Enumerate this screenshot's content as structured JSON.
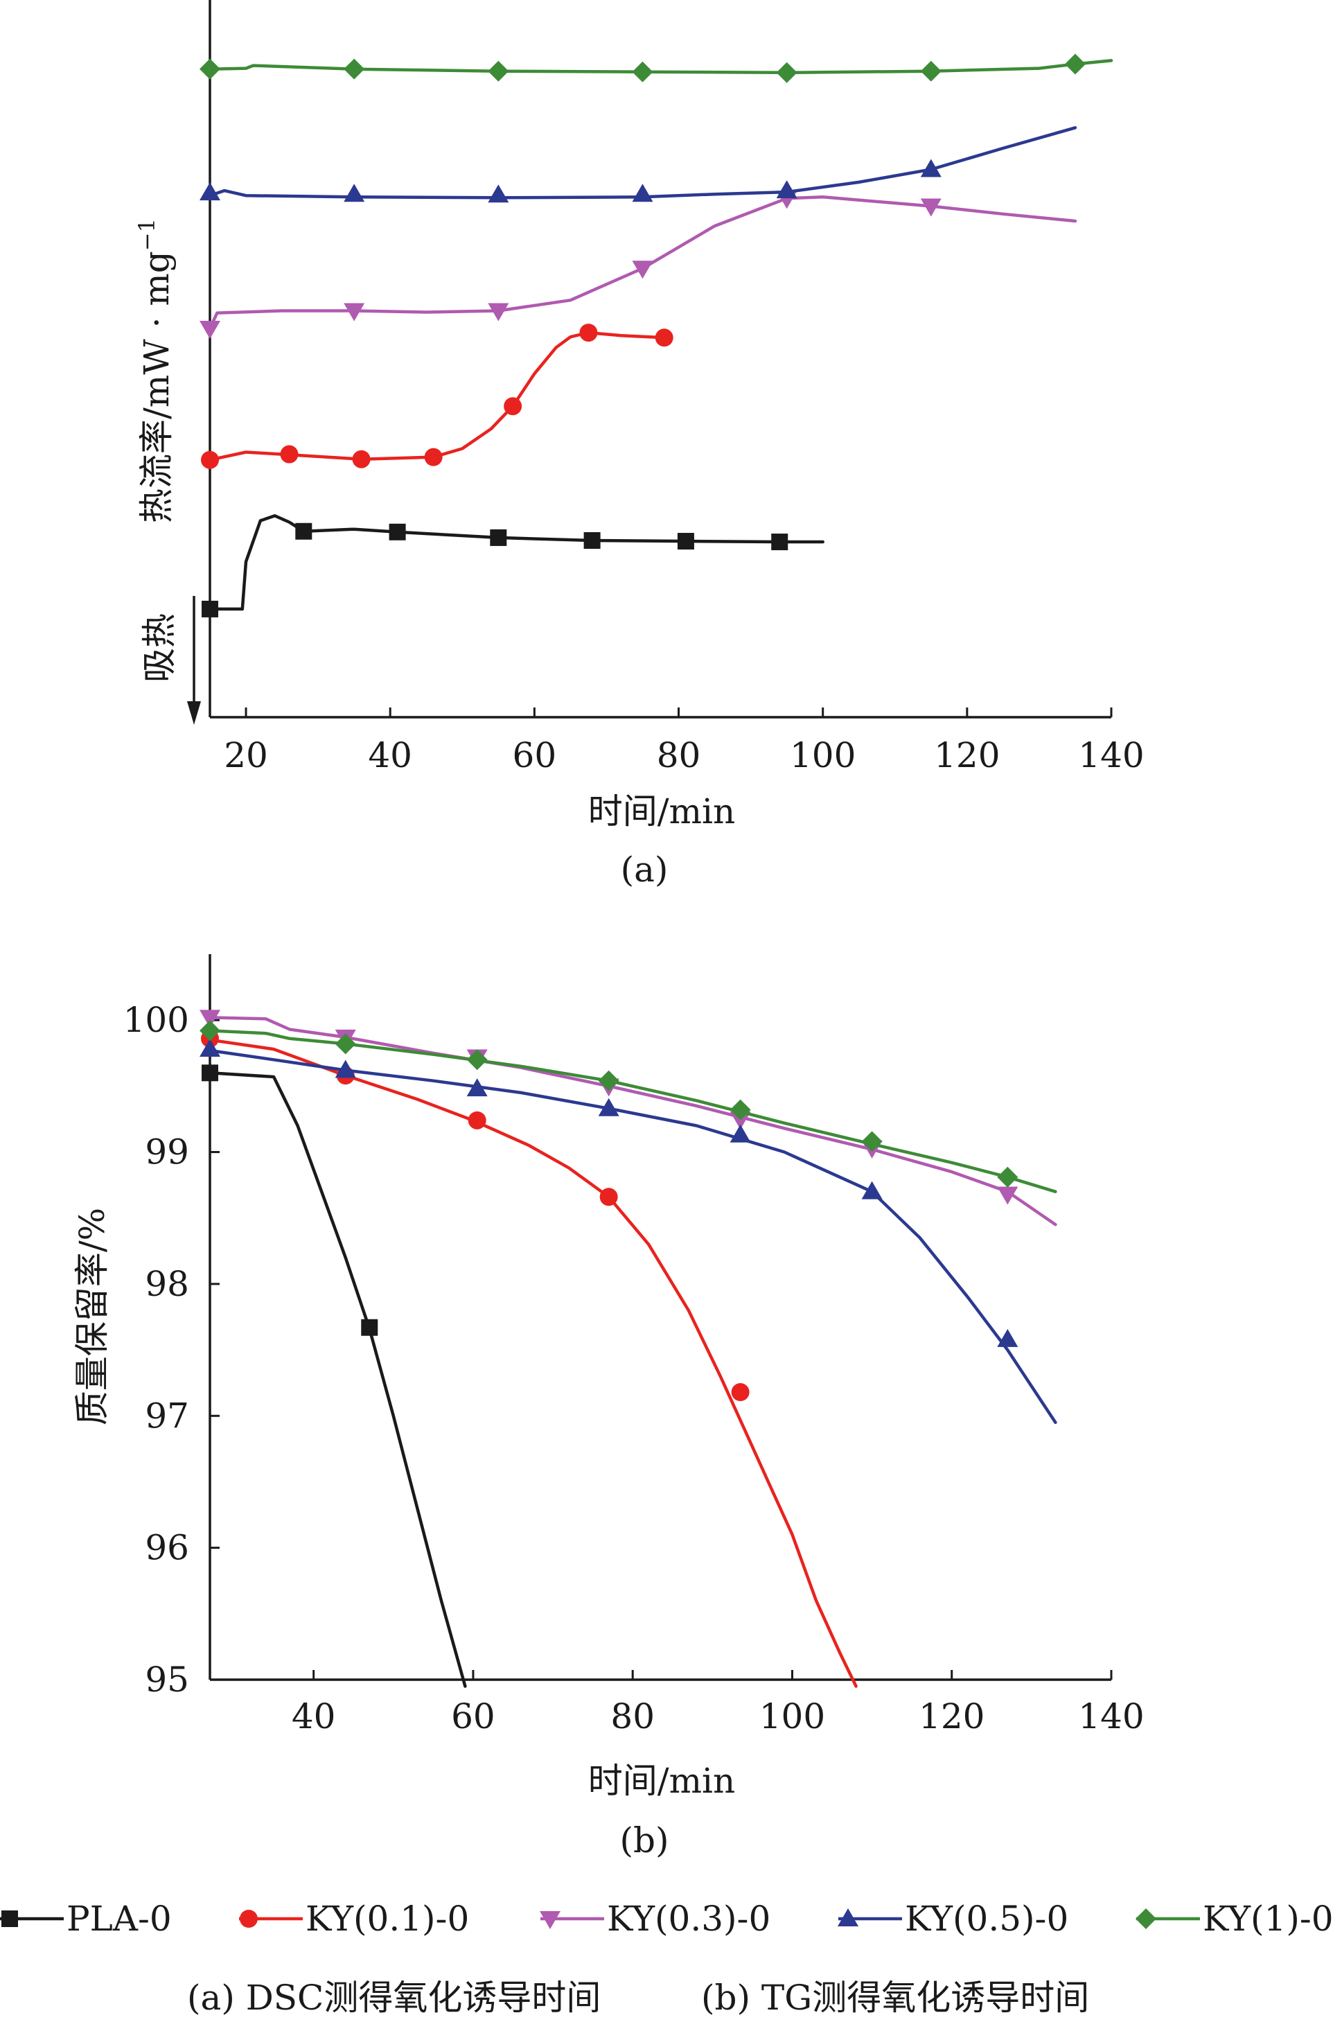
{
  "chart_data": [
    {
      "panel": "a",
      "type": "line",
      "ylabel": "热流率/mW · mg⁻¹",
      "ylabel_main": "热流率/mW",
      "ylabel_dot": "·",
      "ylabel_unit": "mg",
      "ylabel_sup": "−1",
      "xlabel": "时间/min",
      "arrow_label": "吸热",
      "panel_label": "(a)",
      "xlim": [
        15,
        140
      ],
      "ylim": [
        0,
        100
      ],
      "y_ticks_shown": false,
      "xticks": [
        "20",
        "40",
        "60",
        "80",
        "100",
        "120",
        "140"
      ],
      "series": [
        {
          "name": "PLA-0",
          "color": "#1a1a1a",
          "marker": "square",
          "x": [
            15,
            19.5,
            20,
            22,
            24,
            26,
            28,
            35,
            41,
            55,
            68,
            81,
            94,
            100
          ],
          "y": [
            15.3,
            15.3,
            22,
            27.8,
            28.5,
            27.6,
            26.3,
            26.6,
            26.2,
            25.4,
            25.0,
            24.9,
            24.8,
            24.8
          ],
          "marker_x": [
            15,
            28,
            41,
            55,
            68,
            81,
            94
          ],
          "marker_y": [
            15.3,
            26.3,
            26.2,
            25.4,
            25.0,
            24.9,
            24.8
          ]
        },
        {
          "name": "KY(0.1)-0",
          "color": "#e8231f",
          "marker": "circle",
          "x": [
            15,
            20,
            25,
            36,
            46,
            50,
            54,
            57,
            60,
            63,
            65,
            67.5,
            72,
            78
          ],
          "y": [
            36.4,
            37.5,
            37.2,
            36.5,
            36.8,
            38,
            40.8,
            44,
            48.6,
            52.3,
            53.8,
            54.4,
            54.0,
            53.7
          ],
          "marker_x": [
            15,
            26,
            36,
            46,
            57,
            67.5,
            78
          ],
          "marker_y": [
            36.4,
            37.2,
            36.5,
            36.8,
            44,
            54.4,
            53.7
          ]
        },
        {
          "name": "KY(0.3)-0",
          "color": "#b05ab0",
          "marker": "triangle-down",
          "x": [
            15,
            16,
            25,
            35,
            45,
            55,
            65,
            75,
            85,
            95,
            100,
            115,
            125,
            135
          ],
          "y": [
            55,
            57.2,
            57.5,
            57.5,
            57.3,
            57.5,
            59,
            63.5,
            69.5,
            73.4,
            73.6,
            72.3,
            71.2,
            70.2
          ],
          "marker_x": [
            15,
            35,
            55,
            75,
            95,
            115
          ],
          "marker_y": [
            55,
            57.5,
            57.5,
            63.5,
            73.4,
            72.3
          ]
        },
        {
          "name": "KY(0.5)-0",
          "color": "#2b3990",
          "marker": "triangle-up",
          "x": [
            15,
            17,
            20,
            35,
            55,
            75,
            85,
            95,
            105,
            115,
            125,
            135
          ],
          "y": [
            73.8,
            74.5,
            73.8,
            73.6,
            73.5,
            73.6,
            74.0,
            74.3,
            75.7,
            77.5,
            80.5,
            83.4
          ],
          "marker_x": [
            15,
            35,
            55,
            75,
            95,
            115
          ],
          "marker_y": [
            74.2,
            74.0,
            73.9,
            74.0,
            74.5,
            77.5
          ]
        },
        {
          "name": "KY(1)-0",
          "color": "#3d8b37",
          "marker": "diamond",
          "x": [
            15,
            20,
            21,
            35,
            55,
            75,
            95,
            115,
            130,
            135,
            140
          ],
          "y": [
            91.7,
            91.8,
            92.2,
            91.7,
            91.4,
            91.3,
            91.2,
            91.4,
            91.8,
            92.4,
            92.9
          ],
          "marker_x": [
            15,
            35,
            55,
            75,
            95,
            115,
            135
          ],
          "marker_y": [
            91.7,
            91.7,
            91.4,
            91.3,
            91.2,
            91.4,
            92.4
          ]
        }
      ]
    },
    {
      "panel": "b",
      "type": "line",
      "ylabel": "质量保留率/%",
      "xlabel": "时间/min",
      "panel_label": "(b)",
      "xlim": [
        27,
        140
      ],
      "ylim": [
        95,
        100.5
      ],
      "xticks": [
        "40",
        "60",
        "80",
        "100",
        "120",
        "140"
      ],
      "yticks": [
        "95",
        "96",
        "97",
        "98",
        "99",
        "100"
      ],
      "series": [
        {
          "name": "PLA-0",
          "color": "#1a1a1a",
          "marker": "square",
          "x": [
            27,
            35,
            38,
            41,
            44,
            47,
            50,
            53,
            56,
            59
          ],
          "y": [
            99.6,
            99.57,
            99.2,
            98.7,
            98.2,
            97.66,
            97.0,
            96.3,
            95.6,
            94.95
          ],
          "marker_x": [
            27,
            47
          ],
          "marker_y": [
            99.6,
            97.67
          ]
        },
        {
          "name": "KY(0.1)-0",
          "color": "#e8231f",
          "marker": "circle",
          "x": [
            27,
            35,
            44,
            53,
            60,
            67,
            72,
            77,
            82,
            87,
            91,
            94,
            97,
            100,
            103,
            106,
            108
          ],
          "y": [
            99.85,
            99.78,
            99.58,
            99.4,
            99.24,
            99.05,
            98.88,
            98.66,
            98.3,
            97.8,
            97.3,
            96.9,
            96.5,
            96.1,
            95.6,
            95.2,
            94.95
          ],
          "marker_x": [
            27,
            44,
            60.5,
            77,
            93.5
          ],
          "marker_y": [
            99.86,
            99.58,
            99.24,
            98.66,
            97.18
          ]
        },
        {
          "name": "KY(0.3)-0",
          "color": "#b05ab0",
          "marker": "triangle-down",
          "x": [
            27,
            34,
            37,
            44,
            55,
            66,
            77,
            88,
            99,
            110,
            120,
            127,
            133
          ],
          "y": [
            100.02,
            100.01,
            99.93,
            99.87,
            99.75,
            99.64,
            99.5,
            99.35,
            99.18,
            99.02,
            98.85,
            98.7,
            98.45
          ],
          "marker_x": [
            27,
            44,
            60.5,
            77,
            93.5,
            110,
            127
          ],
          "marker_y": [
            100.02,
            99.87,
            99.72,
            99.5,
            99.25,
            99.03,
            98.68
          ]
        },
        {
          "name": "KY(0.5)-0",
          "color": "#2b3990",
          "marker": "triangle-up",
          "x": [
            27,
            35,
            44,
            55,
            66,
            77,
            88,
            99,
            110,
            116,
            122,
            127,
            133
          ],
          "y": [
            99.77,
            99.7,
            99.62,
            99.54,
            99.45,
            99.33,
            99.2,
            99.0,
            98.7,
            98.35,
            97.9,
            97.5,
            96.95
          ],
          "marker_x": [
            27,
            44,
            60.5,
            77,
            93.5,
            110,
            127
          ],
          "marker_y": [
            99.78,
            99.62,
            99.48,
            99.33,
            99.13,
            98.7,
            97.58
          ]
        },
        {
          "name": "KY(1)-0",
          "color": "#3d8b37",
          "marker": "diamond",
          "x": [
            27,
            34,
            37,
            44,
            55,
            66,
            77,
            88,
            99,
            110,
            120,
            127,
            133
          ],
          "y": [
            99.92,
            99.9,
            99.86,
            99.82,
            99.74,
            99.65,
            99.54,
            99.39,
            99.22,
            99.06,
            98.92,
            98.81,
            98.7
          ],
          "marker_x": [
            27,
            44,
            60.5,
            77,
            93.5,
            110,
            127
          ],
          "marker_y": [
            99.92,
            99.82,
            99.7,
            99.54,
            99.32,
            99.08,
            98.81
          ]
        }
      ]
    }
  ],
  "legend": {
    "placement": "bottom",
    "items": [
      {
        "name": "PLA-0",
        "color": "#1a1a1a",
        "marker": "square"
      },
      {
        "name": "KY(0.1)-0",
        "color": "#e8231f",
        "marker": "circle"
      },
      {
        "name": "KY(0.3)-0",
        "color": "#b05ab0",
        "marker": "triangle-down"
      },
      {
        "name": "KY(0.5)-0",
        "color": "#2b3990",
        "marker": "triangle-up"
      },
      {
        "name": "KY(1)-0",
        "color": "#3d8b37",
        "marker": "diamond"
      }
    ]
  },
  "caption": {
    "a": "(a) DSC测得氧化诱导时间",
    "b": "(b) TG测得氧化诱导时间"
  }
}
